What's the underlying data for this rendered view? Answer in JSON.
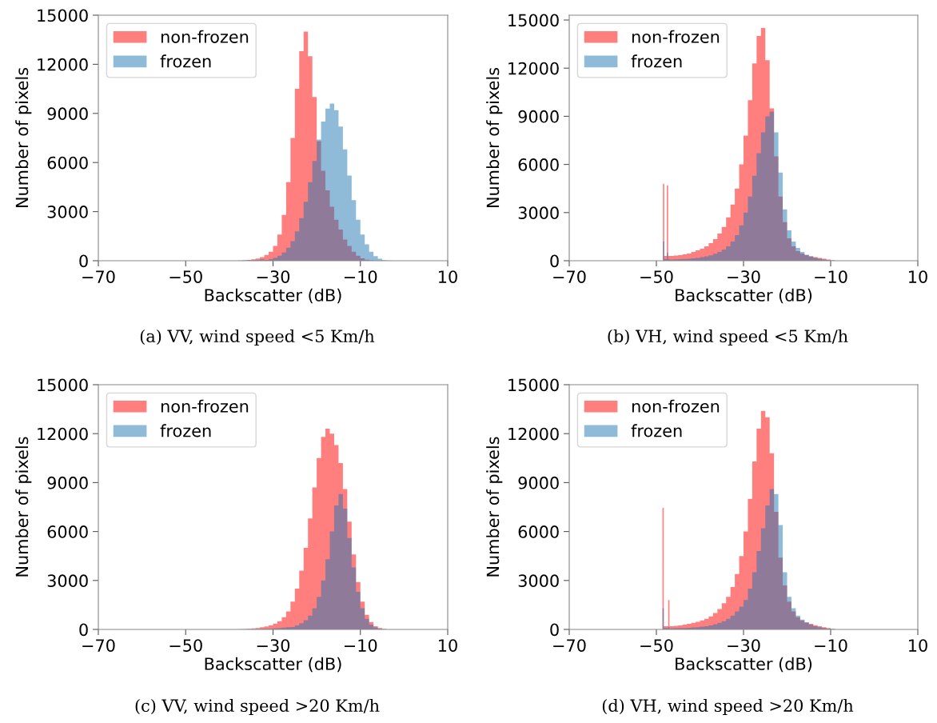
{
  "chart_data": [
    {
      "type": "histogram",
      "xlabel": "Backscatter (dB)",
      "ylabel": "Number of pixels",
      "annotations": [
        "(a) VV, wind speed <5 Km/h"
      ],
      "legend": "top left",
      "grid": false,
      "xlim": [
        -70,
        10
      ],
      "ylim": [
        0,
        15000
      ],
      "xticks": [
        {
          "value": -70,
          "label": "−70"
        },
        {
          "value": -50,
          "label": "−50"
        },
        {
          "value": -30,
          "label": "−30"
        },
        {
          "value": -10,
          "label": "−10"
        },
        10
      ],
      "yticks": [
        0,
        3000,
        6000,
        9000,
        12000,
        15000
      ],
      "bins": [
        -40,
        -39,
        -38,
        -37,
        -36,
        -35,
        -34,
        -33,
        -32,
        -31,
        -30,
        -29,
        -28,
        -27,
        -26,
        -25,
        -24,
        -23,
        -22,
        -21,
        -20,
        -19,
        -18,
        -17,
        -16,
        -15,
        -14,
        -13,
        -12,
        -11,
        -10,
        -9,
        -8,
        -7,
        -6,
        -5,
        -4,
        -3
      ],
      "series": [
        {
          "name": "non-frozen",
          "color": "#ff0000",
          "values": [
            0,
            5,
            15,
            30,
            50,
            90,
            140,
            220,
            350,
            550,
            900,
            1600,
            2800,
            4800,
            7500,
            10500,
            12800,
            14000,
            12500,
            10000,
            7300,
            5500,
            4300,
            3300,
            2500,
            1900,
            1300,
            900,
            550,
            300,
            150,
            60,
            20,
            0,
            0,
            0,
            0
          ]
        },
        {
          "name": "frozen",
          "color": "#1f77b4",
          "values": [
            0,
            0,
            5,
            10,
            20,
            30,
            50,
            80,
            50,
            100,
            180,
            300,
            500,
            800,
            1200,
            1800,
            2600,
            3600,
            4800,
            6100,
            7400,
            8500,
            9300,
            9600,
            9200,
            8200,
            6800,
            5200,
            3700,
            2500,
            1600,
            1000,
            550,
            280,
            120,
            40,
            10
          ]
        }
      ]
    },
    {
      "type": "histogram",
      "xlabel": "Backscatter (dB)",
      "ylabel": "Number of pixels",
      "annotations": [
        "(b) VH, wind speed <5 Km/h"
      ],
      "legend": "top left",
      "grid": false,
      "xlim": [
        -70,
        10
      ],
      "ylim": [
        0,
        15300
      ],
      "xticks": [
        {
          "value": -70,
          "label": "−70"
        },
        {
          "value": -50,
          "label": "−50"
        },
        {
          "value": -30,
          "label": "−30"
        },
        {
          "value": -10,
          "label": "−10"
        },
        10
      ],
      "yticks": [
        0,
        3000,
        6000,
        9000,
        12000,
        15000
      ],
      "bins": [
        -48.5,
        -48.2,
        -47.6,
        -47.3,
        -47,
        -46,
        -45,
        -44,
        -43,
        -42,
        -41,
        -40,
        -39,
        -38,
        -37,
        -36,
        -35,
        -34,
        -33,
        -32,
        -31,
        -30,
        -29,
        -28,
        -27,
        -26,
        -25,
        -24,
        -23,
        -22,
        -21,
        -20,
        -19,
        -18,
        -17,
        -16,
        -15,
        -14,
        -13,
        -12,
        -11,
        -10,
        -9
      ],
      "series": [
        {
          "name": "non-frozen",
          "color": "#ff0000",
          "values": [
            4800,
            300,
            4700,
            300,
            300,
            320,
            350,
            400,
            450,
            550,
            650,
            750,
            900,
            1100,
            1350,
            1700,
            2100,
            2700,
            3500,
            4500,
            6000,
            7800,
            10000,
            12300,
            14000,
            14500,
            12500,
            9500,
            6500,
            4000,
            2400,
            1400,
            900,
            600,
            450,
            350,
            280,
            220,
            170,
            120,
            70,
            30
          ]
        },
        {
          "name": "frozen",
          "color": "#1f77b4",
          "values": [
            1200,
            100,
            500,
            100,
            80,
            90,
            100,
            110,
            130,
            150,
            180,
            220,
            270,
            340,
            430,
            550,
            700,
            900,
            1200,
            1600,
            2200,
            3000,
            4000,
            5300,
            6700,
            8000,
            9000,
            9300,
            8000,
            5500,
            3200,
            1900,
            1200,
            800,
            550,
            380,
            270,
            190,
            130,
            80,
            40,
            15
          ]
        }
      ]
    },
    {
      "type": "histogram",
      "xlabel": "Backscatter (dB)",
      "ylabel": "Number of pixels",
      "annotations": [
        "(c) VV, wind speed >20 Km/h"
      ],
      "legend": "top left",
      "grid": false,
      "xlim": [
        -70,
        10
      ],
      "ylim": [
        0,
        15000
      ],
      "xticks": [
        {
          "value": -70,
          "label": "−70"
        },
        {
          "value": -50,
          "label": "−50"
        },
        {
          "value": -30,
          "label": "−30"
        },
        {
          "value": -10,
          "label": "−10"
        },
        10
      ],
      "yticks": [
        0,
        3000,
        6000,
        9000,
        12000,
        15000
      ],
      "bins": [
        -38,
        -37,
        -36,
        -35,
        -34,
        -33,
        -32,
        -31,
        -30,
        -29,
        -28,
        -27,
        -26,
        -25,
        -24,
        -23,
        -22,
        -21,
        -20,
        -19,
        -18,
        -17,
        -16,
        -15,
        -14,
        -13,
        -12,
        -11,
        -10,
        -9,
        -8,
        -7,
        -6,
        -5,
        -4
      ],
      "series": [
        {
          "name": "non-frozen",
          "color": "#ff0000",
          "values": [
            10,
            20,
            40,
            60,
            90,
            130,
            180,
            250,
            350,
            500,
            750,
            1100,
            1700,
            2500,
            3600,
            5000,
            6800,
            8700,
            10500,
            11800,
            12300,
            12000,
            11300,
            10200,
            8600,
            6600,
            4600,
            2900,
            1700,
            900,
            450,
            200,
            80,
            30
          ]
        },
        {
          "name": "frozen",
          "color": "#1f77b4",
          "values": [
            0,
            5,
            10,
            15,
            20,
            30,
            40,
            55,
            70,
            90,
            110,
            130,
            150,
            250,
            380,
            560,
            850,
            1300,
            2000,
            3000,
            4300,
            6000,
            7600,
            8300,
            7400,
            5600,
            3800,
            2300,
            1300,
            650,
            300,
            120,
            40,
            10
          ]
        }
      ]
    },
    {
      "type": "histogram",
      "xlabel": "Backscatter (dB)",
      "ylabel": "Number of pixels",
      "annotations": [
        "(d) VH, wind speed >20 Km/h"
      ],
      "legend": "top left",
      "grid": false,
      "xlim": [
        -70,
        10
      ],
      "ylim": [
        0,
        15000
      ],
      "xticks": [
        {
          "value": -70,
          "label": "−70"
        },
        {
          "value": -50,
          "label": "−50"
        },
        {
          "value": -30,
          "label": "−30"
        },
        {
          "value": -10,
          "label": "−10"
        },
        10
      ],
      "yticks": [
        0,
        3000,
        6000,
        9000,
        12000,
        15000
      ],
      "bins": [
        -48.6,
        -48.3,
        -47.3,
        -47,
        -46,
        -45,
        -44,
        -43,
        -42,
        -41,
        -40,
        -39,
        -38,
        -37,
        -36,
        -35,
        -34,
        -33,
        -32,
        -31,
        -30,
        -29,
        -28,
        -27,
        -26,
        -25,
        -24,
        -23,
        -22,
        -21,
        -20,
        -19,
        -18,
        -17,
        -16,
        -15,
        -14,
        -13,
        -12,
        -11,
        -10,
        -9
      ],
      "series": [
        {
          "name": "non-frozen",
          "color": "#ff0000",
          "values": [
            7450,
            200,
            1800,
            200,
            220,
            250,
            290,
            340,
            400,
            470,
            550,
            650,
            800,
            1000,
            1250,
            1600,
            2000,
            2600,
            3400,
            4500,
            6000,
            8000,
            10300,
            12300,
            13400,
            13000,
            10800,
            7200,
            4400,
            2700,
            1700,
            1100,
            750,
            550,
            430,
            340,
            260,
            190,
            130,
            80,
            40
          ]
        },
        {
          "name": "frozen",
          "color": "#1f77b4",
          "values": [
            1300,
            80,
            150,
            60,
            70,
            80,
            90,
            100,
            120,
            140,
            170,
            200,
            250,
            320,
            400,
            500,
            650,
            850,
            1100,
            1400,
            1800,
            2500,
            3500,
            4800,
            6200,
            7600,
            8600,
            8300,
            6400,
            3500,
            2000,
            1300,
            850,
            600,
            430,
            300,
            200,
            130,
            80,
            40,
            15
          ]
        }
      ]
    }
  ]
}
